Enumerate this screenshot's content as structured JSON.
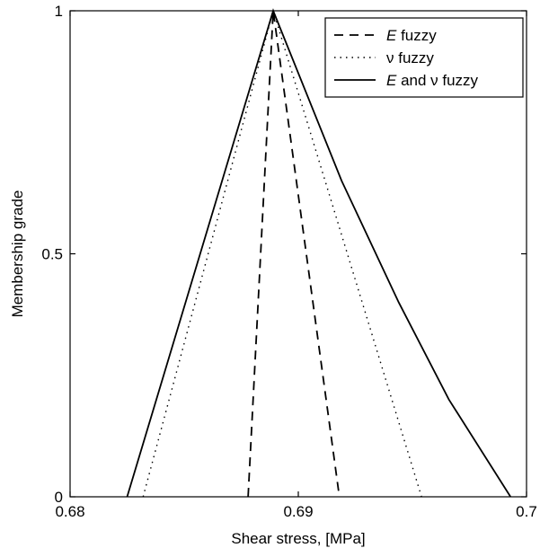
{
  "chart_data": {
    "type": "line",
    "title": "",
    "xlabel": "Shear stress, [MPa]",
    "ylabel": "Membership grade",
    "xlim": [
      0.68,
      0.7
    ],
    "ylim": [
      0,
      1
    ],
    "xticks": [
      0.68,
      0.69,
      0.7
    ],
    "xtick_labels": [
      "0.68",
      "0.69",
      "0.7"
    ],
    "yticks": [
      0,
      0.5,
      1
    ],
    "ytick_labels": [
      "0",
      "0.5",
      "1"
    ],
    "grid": false,
    "legend_position": "top-right",
    "series": [
      {
        "name_parts": [
          {
            "text": "E",
            "italic": true
          },
          {
            "text": " fuzzy",
            "italic": false
          }
        ],
        "style": "dashed",
        "color": "#000000",
        "x": [
          0.6878,
          0.6889,
          0.6918
        ],
        "y": [
          0,
          1,
          0
        ]
      },
      {
        "name_parts": [
          {
            "text": "ν fuzzy",
            "italic": false
          }
        ],
        "style": "dotted",
        "color": "#000000",
        "x": [
          0.6832,
          0.6889,
          0.6954
        ],
        "y": [
          0,
          1,
          0
        ]
      },
      {
        "name_parts": [
          {
            "text": "E",
            "italic": true
          },
          {
            "text": " and ν fuzzy",
            "italic": false
          }
        ],
        "style": "solid",
        "color": "#000000",
        "x": [
          0.6825,
          0.6889,
          0.6919,
          0.6944,
          0.6966,
          0.6993
        ],
        "y": [
          0,
          1,
          0.65,
          0.4,
          0.2,
          0
        ]
      }
    ]
  }
}
